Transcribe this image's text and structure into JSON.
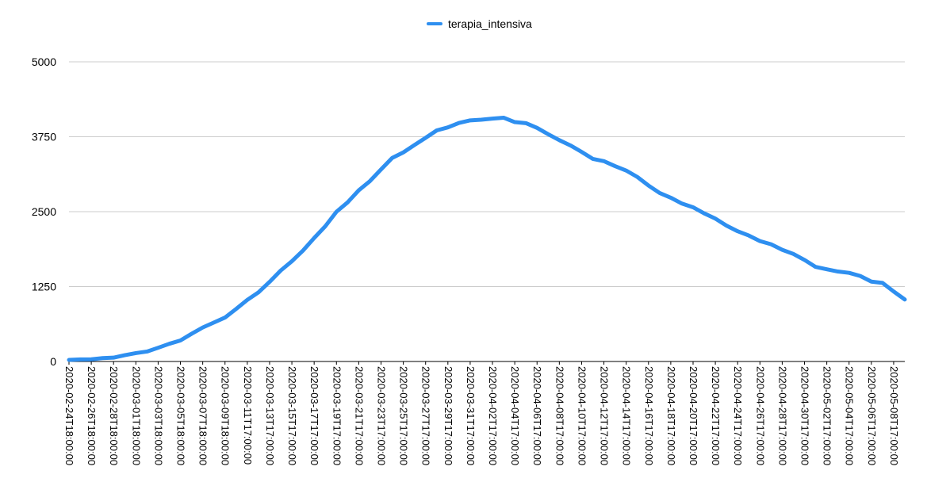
{
  "chart_data": {
    "type": "line",
    "title": "",
    "xlabel": "",
    "ylabel": "",
    "ylim": [
      0,
      5000
    ],
    "yticks": [
      "0",
      "1250",
      "2500",
      "3750",
      "5000"
    ],
    "ytick_values": [
      0,
      1250,
      2500,
      3750,
      5000
    ],
    "grid": true,
    "legend_position": "top-center",
    "colors": {
      "series": "#2e8ff0",
      "grid": "#cccccc",
      "axis": "#000000"
    },
    "x": [
      "2020-02-24T18:00:00",
      "2020-02-25T18:00:00",
      "2020-02-26T18:00:00",
      "2020-02-27T18:00:00",
      "2020-02-28T18:00:00",
      "2020-02-29T18:00:00",
      "2020-03-01T18:00:00",
      "2020-03-02T18:00:00",
      "2020-03-03T18:00:00",
      "2020-03-04T18:00:00",
      "2020-03-05T18:00:00",
      "2020-03-06T18:00:00",
      "2020-03-07T18:00:00",
      "2020-03-08T18:00:00",
      "2020-03-09T18:00:00",
      "2020-03-10T18:00:00",
      "2020-03-11T17:00:00",
      "2020-03-12T17:00:00",
      "2020-03-13T17:00:00",
      "2020-03-14T17:00:00",
      "2020-03-15T17:00:00",
      "2020-03-16T17:00:00",
      "2020-03-17T17:00:00",
      "2020-03-18T17:00:00",
      "2020-03-19T17:00:00",
      "2020-03-20T17:00:00",
      "2020-03-21T17:00:00",
      "2020-03-22T17:00:00",
      "2020-03-23T17:00:00",
      "2020-03-24T17:00:00",
      "2020-03-25T17:00:00",
      "2020-03-26T17:00:00",
      "2020-03-27T17:00:00",
      "2020-03-28T17:00:00",
      "2020-03-29T17:00:00",
      "2020-03-30T17:00:00",
      "2020-03-31T17:00:00",
      "2020-04-01T17:00:00",
      "2020-04-02T17:00:00",
      "2020-04-03T17:00:00",
      "2020-04-04T17:00:00",
      "2020-04-05T17:00:00",
      "2020-04-06T17:00:00",
      "2020-04-07T17:00:00",
      "2020-04-08T17:00:00",
      "2020-04-09T17:00:00",
      "2020-04-10T17:00:00",
      "2020-04-11T17:00:00",
      "2020-04-12T17:00:00",
      "2020-04-13T17:00:00",
      "2020-04-14T17:00:00",
      "2020-04-15T17:00:00",
      "2020-04-16T17:00:00",
      "2020-04-17T17:00:00",
      "2020-04-18T17:00:00",
      "2020-04-19T17:00:00",
      "2020-04-20T17:00:00",
      "2020-04-21T17:00:00",
      "2020-04-22T17:00:00",
      "2020-04-23T17:00:00",
      "2020-04-24T17:00:00",
      "2020-04-25T17:00:00",
      "2020-04-26T17:00:00",
      "2020-04-27T17:00:00",
      "2020-04-28T17:00:00",
      "2020-04-29T17:00:00",
      "2020-04-30T17:00:00",
      "2020-05-01T17:00:00",
      "2020-05-02T17:00:00",
      "2020-05-03T17:00:00",
      "2020-05-04T17:00:00",
      "2020-05-05T17:00:00",
      "2020-05-06T17:00:00",
      "2020-05-07T17:00:00",
      "2020-05-08T17:00:00",
      "2020-05-09T17:00:00"
    ],
    "xtick_labels": [
      "2020-02-24T18:00:00",
      "2020-02-26T18:00:00",
      "2020-02-28T18:00:00",
      "2020-03-01T18:00:00",
      "2020-03-03T18:00:00",
      "2020-03-05T18:00:00",
      "2020-03-07T18:00:00",
      "2020-03-09T18:00:00",
      "2020-03-11T17:00:00",
      "2020-03-13T17:00:00",
      "2020-03-15T17:00:00",
      "2020-03-17T17:00:00",
      "2020-03-19T17:00:00",
      "2020-03-21T17:00:00",
      "2020-03-23T17:00:00",
      "2020-03-25T17:00:00",
      "2020-03-27T17:00:00",
      "2020-03-29T17:00:00",
      "2020-03-31T17:00:00",
      "2020-04-02T17:00:00",
      "2020-04-04T17:00:00",
      "2020-04-06T17:00:00",
      "2020-04-08T17:00:00",
      "2020-04-10T17:00:00",
      "2020-04-12T17:00:00",
      "2020-04-14T17:00:00",
      "2020-04-16T17:00:00",
      "2020-04-18T17:00:00",
      "2020-04-20T17:00:00",
      "2020-04-22T17:00:00",
      "2020-04-24T17:00:00",
      "2020-04-26T17:00:00",
      "2020-04-28T17:00:00",
      "2020-04-30T17:00:00",
      "2020-05-02T17:00:00",
      "2020-05-04T17:00:00",
      "2020-05-06T17:00:00",
      "2020-05-08T17:00:00"
    ],
    "series": [
      {
        "name": "terapia_intensiva",
        "values": [
          26,
          35,
          36,
          56,
          64,
          105,
          140,
          166,
          229,
          295,
          351,
          462,
          567,
          650,
          733,
          877,
          1028,
          1153,
          1328,
          1518,
          1672,
          1851,
          2060,
          2257,
          2498,
          2655,
          2857,
          3009,
          3204,
          3396,
          3489,
          3612,
          3732,
          3856,
          3906,
          3981,
          4023,
          4035,
          4053,
          4068,
          3994,
          3977,
          3898,
          3792,
          3693,
          3605,
          3497,
          3381,
          3343,
          3260,
          3186,
          3079,
          2936,
          2812,
          2733,
          2635,
          2573,
          2471,
          2384,
          2267,
          2173,
          2102,
          2009,
          1956,
          1863,
          1795,
          1694,
          1578,
          1539,
          1501,
          1479,
          1427,
          1333,
          1311,
          1168,
          1034
        ]
      }
    ]
  }
}
